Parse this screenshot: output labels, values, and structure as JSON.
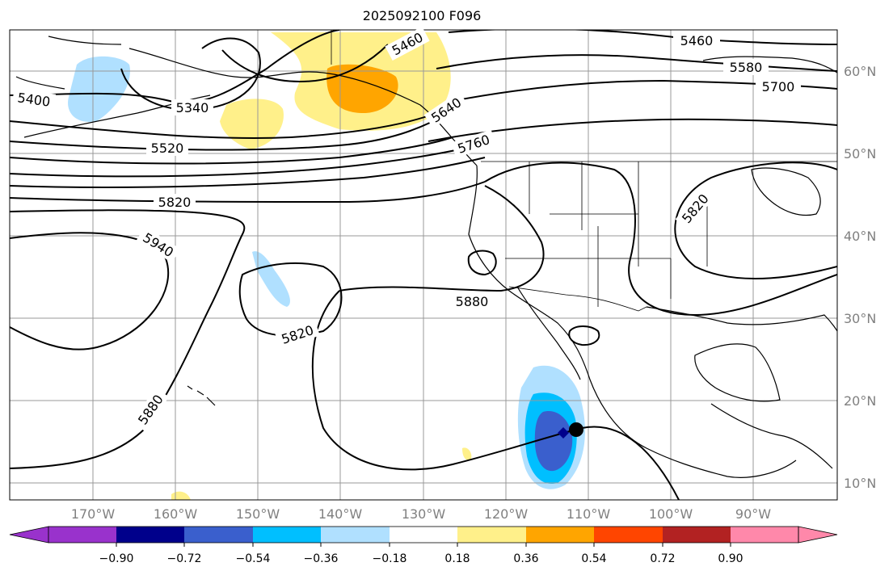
{
  "title": "2025092100 F096",
  "map": {
    "lon_labels": [
      "170°W",
      "160°W",
      "150°W",
      "140°W",
      "130°W",
      "120°W",
      "110°W",
      "100°W",
      "90°W"
    ],
    "lat_labels": [
      "60°N",
      "50°N",
      "40°N",
      "30°N",
      "20°N",
      "10°N"
    ],
    "contour_labels": [
      "5460",
      "5580",
      "5700",
      "5400",
      "5340",
      "5460",
      "5640",
      "5520",
      "5760",
      "5820",
      "5820",
      "5940",
      "5880",
      "5820",
      "5880"
    ],
    "gridlines": true
  },
  "colorbar": {
    "tick_labels": [
      "−0.90",
      "−0.72",
      "−0.54",
      "−0.36",
      "−0.18",
      "0.18",
      "0.36",
      "0.54",
      "0.72",
      "0.90"
    ],
    "colors": [
      "#9932cc",
      "#00008b",
      "#3a5fcd",
      "#00bfff",
      "#b0e0ff",
      "#ffffff",
      "#fff08a",
      "#ffa500",
      "#ff4500",
      "#b22222",
      "#ff88aa"
    ]
  },
  "colors": {
    "frame": "#000000",
    "gridline": "#999999",
    "axis_label": "#808080"
  },
  "markers": {
    "storm_center": "black-circle",
    "blue_diamond": "navy-diamond"
  }
}
